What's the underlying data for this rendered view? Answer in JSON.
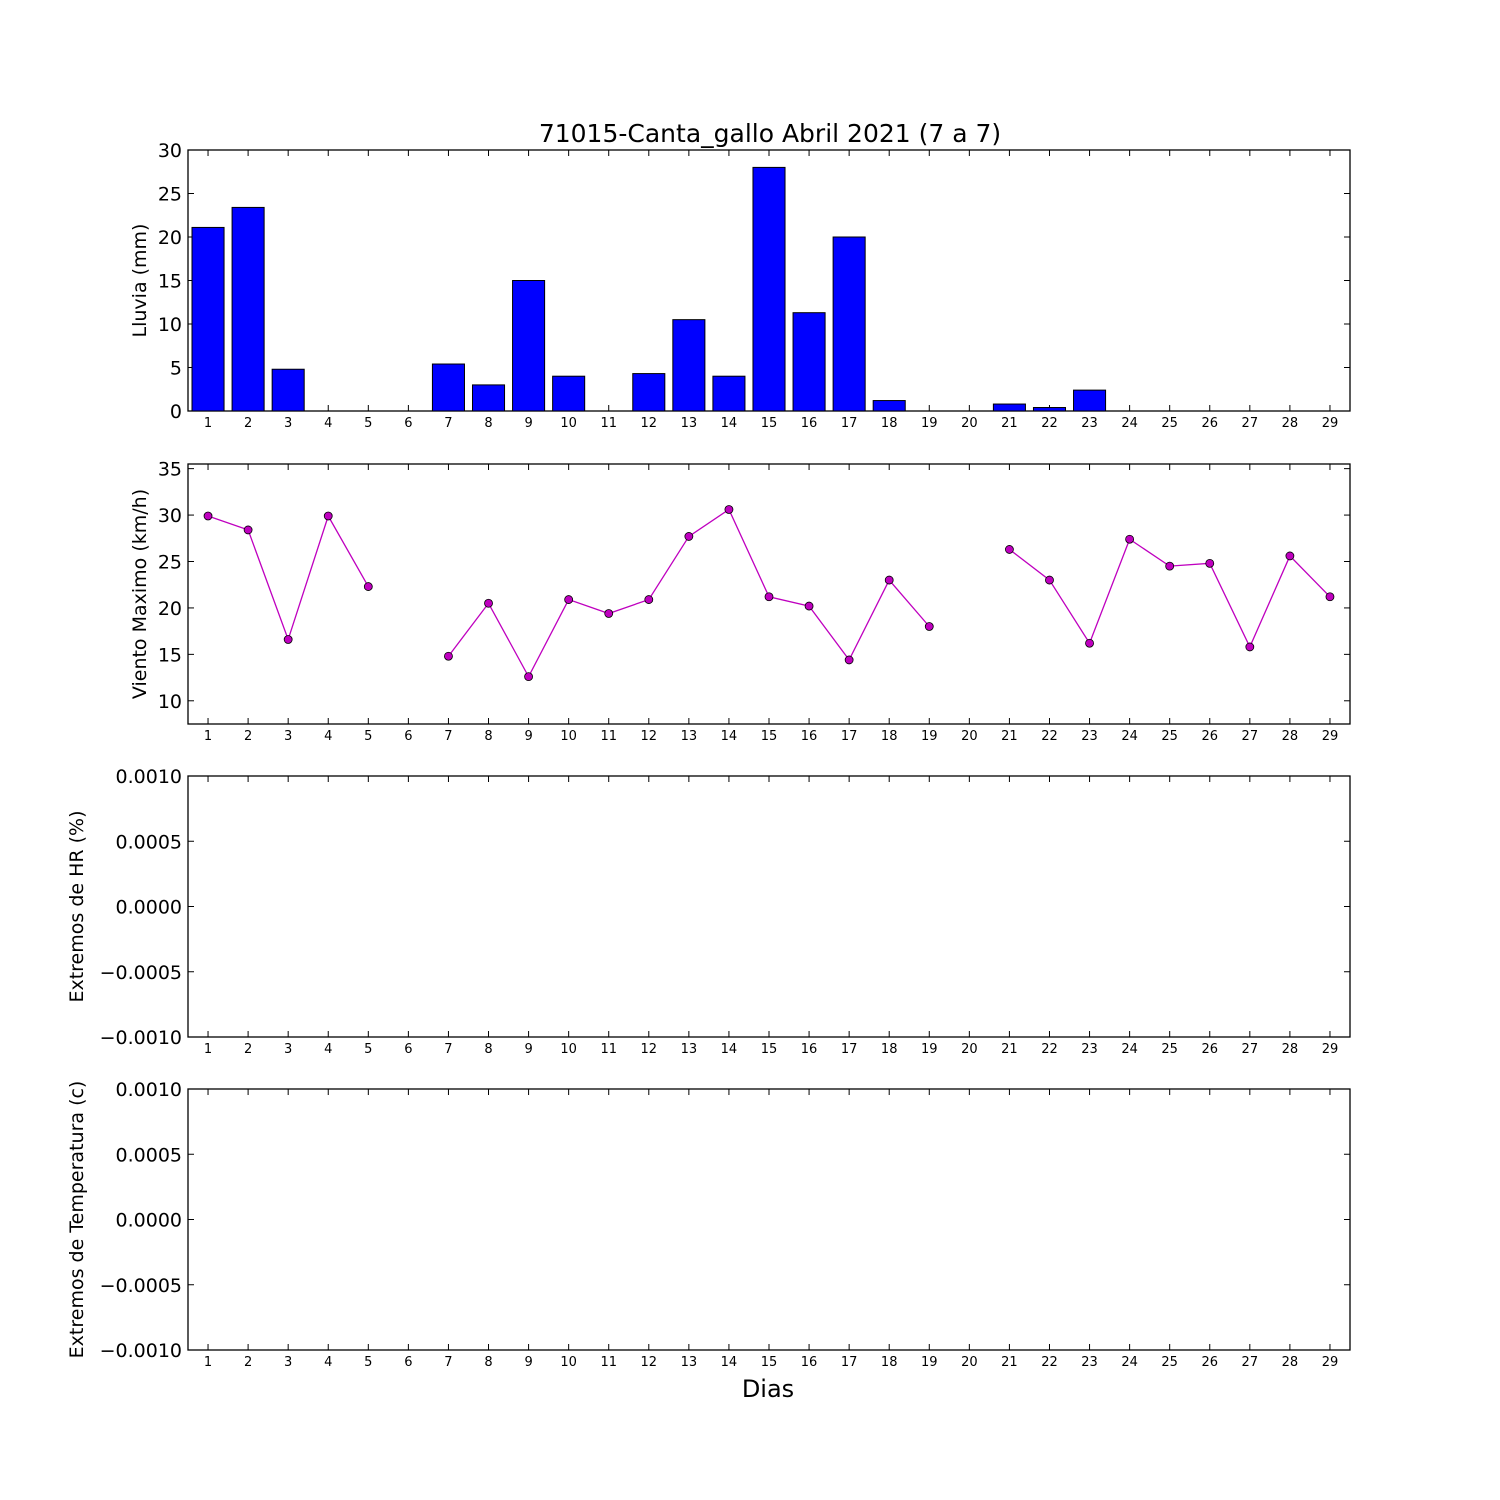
{
  "figure": {
    "title": "71015-Canta_gallo Abril 2021  (7 a 7)",
    "xlabel": "Dias"
  },
  "chart_data": [
    {
      "type": "bar",
      "ylabel": "Lluvia (mm)",
      "ylim": [
        0,
        30
      ],
      "yticks": [
        0,
        5,
        10,
        15,
        20,
        25,
        30
      ],
      "ytick_labels": [
        "0",
        "5",
        "10",
        "15",
        "20",
        "25",
        "30"
      ],
      "categories": [
        "1",
        "2",
        "3",
        "4",
        "5",
        "6",
        "7",
        "8",
        "9",
        "10",
        "11",
        "12",
        "13",
        "14",
        "15",
        "16",
        "17",
        "18",
        "19",
        "20",
        "21",
        "22",
        "23",
        "24",
        "25",
        "26",
        "27",
        "28",
        "29"
      ],
      "values": [
        21.1,
        23.4,
        4.8,
        0,
        0,
        0,
        5.4,
        3.0,
        15.0,
        4.0,
        0,
        4.3,
        10.5,
        4.0,
        28.0,
        11.3,
        20.0,
        1.2,
        0,
        0,
        0.8,
        0.4,
        2.4,
        0,
        0,
        0,
        0,
        0,
        0
      ],
      "color": "#0000ff",
      "grid": false
    },
    {
      "type": "line",
      "ylabel": "Viento Maximo (km/h)",
      "ylim": [
        7.5,
        35.5
      ],
      "yticks": [
        10,
        15,
        20,
        25,
        30,
        35
      ],
      "ytick_labels": [
        "10",
        "15",
        "20",
        "25",
        "30",
        "35"
      ],
      "categories": [
        "1",
        "2",
        "3",
        "4",
        "5",
        "6",
        "7",
        "8",
        "9",
        "10",
        "11",
        "12",
        "13",
        "14",
        "15",
        "16",
        "17",
        "18",
        "19",
        "20",
        "21",
        "22",
        "23",
        "24",
        "25",
        "26",
        "27",
        "28",
        "29"
      ],
      "values": [
        29.9,
        28.4,
        16.6,
        29.9,
        22.3,
        null,
        14.8,
        20.5,
        12.6,
        20.9,
        19.4,
        20.9,
        27.7,
        30.6,
        21.2,
        20.2,
        14.4,
        23.0,
        18.0,
        null,
        26.3,
        23.0,
        16.2,
        27.4,
        24.5,
        24.8,
        15.8,
        25.6,
        21.2
      ],
      "color": "#bf00bf",
      "marker": "circle",
      "grid": false
    },
    {
      "type": "line",
      "ylabel": "Extremos de HR (%)",
      "ylim": [
        -0.001,
        0.001
      ],
      "yticks": [
        -0.001,
        -0.0005,
        0.0,
        0.0005,
        0.001
      ],
      "ytick_labels": [
        "−0.0010",
        "−0.0005",
        "0.0000",
        "0.0005",
        "0.0010"
      ],
      "categories": [
        "1",
        "2",
        "3",
        "4",
        "5",
        "6",
        "7",
        "8",
        "9",
        "10",
        "11",
        "12",
        "13",
        "14",
        "15",
        "16",
        "17",
        "18",
        "19",
        "20",
        "21",
        "22",
        "23",
        "24",
        "25",
        "26",
        "27",
        "28",
        "29"
      ],
      "series": [],
      "grid": false
    },
    {
      "type": "line",
      "ylabel": "Extremos de Temperatura (c)",
      "ylim": [
        -0.001,
        0.001
      ],
      "yticks": [
        -0.001,
        -0.0005,
        0.0,
        0.0005,
        0.001
      ],
      "ytick_labels": [
        "−0.0010",
        "−0.0005",
        "0.0000",
        "0.0005",
        "0.0010"
      ],
      "categories": [
        "1",
        "2",
        "3",
        "4",
        "5",
        "6",
        "7",
        "8",
        "9",
        "10",
        "11",
        "12",
        "13",
        "14",
        "15",
        "16",
        "17",
        "18",
        "19",
        "20",
        "21",
        "22",
        "23",
        "24",
        "25",
        "26",
        "27",
        "28",
        "29"
      ],
      "series": [],
      "grid": false
    }
  ]
}
